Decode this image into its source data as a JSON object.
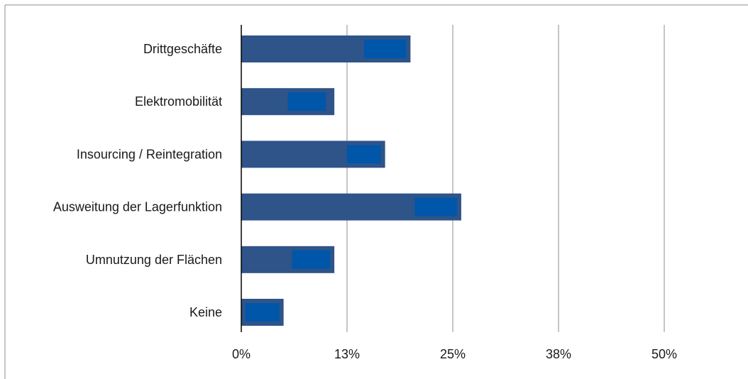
{
  "chart_data": {
    "type": "bar",
    "orientation": "horizontal",
    "title": "",
    "xlabel": "",
    "ylabel": "",
    "categories": [
      "Drittgeschäfte",
      "Elektromobilität",
      "Insourcing / Reintegration",
      "Ausweitung der Lagerfunktion",
      "Umnutzung der Flächen",
      "Keine"
    ],
    "series": [
      {
        "values": [
          20,
          11,
          17,
          26,
          11,
          5
        ],
        "color": "#2e5489"
      },
      {
        "values": [
          5,
          4.5,
          4,
          5,
          4.5,
          4
        ],
        "start": [
          14.5,
          5.5,
          12.5,
          20.5,
          6,
          0.5
        ],
        "color": "#0056a9"
      }
    ],
    "xlim": [
      0,
      50
    ],
    "xticks": [
      0,
      12.5,
      25,
      37.5,
      50
    ],
    "xtick_labels": [
      "0%",
      "13%",
      "25%",
      "38%",
      "50%"
    ],
    "grid": true,
    "legend": "none"
  }
}
